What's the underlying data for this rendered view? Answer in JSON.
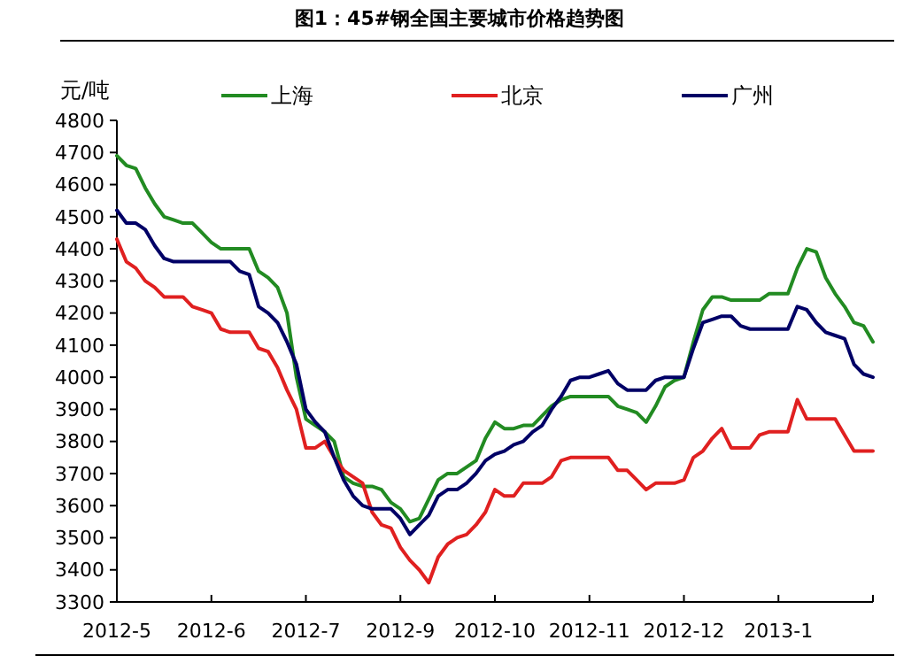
{
  "chart_data": {
    "type": "line",
    "title": "图1：45#钢全国主要城市价格趋势图",
    "ylabel": "元/吨",
    "legend": "top",
    "grid": false,
    "marker": "none",
    "line_style": "solid",
    "categories": [
      "2012-5",
      null,
      null,
      null,
      null,
      null,
      null,
      null,
      null,
      null,
      "2012-6",
      null,
      null,
      null,
      null,
      null,
      null,
      null,
      null,
      null,
      "2012-7",
      null,
      null,
      null,
      null,
      null,
      null,
      null,
      null,
      null,
      "2012-9",
      null,
      null,
      null,
      null,
      null,
      null,
      null,
      null,
      null,
      "2012-10",
      null,
      null,
      null,
      null,
      null,
      null,
      null,
      null,
      null,
      "2012-11",
      null,
      null,
      null,
      null,
      null,
      null,
      null,
      null,
      null,
      "2012-12",
      null,
      null,
      null,
      null,
      null,
      null,
      null,
      null,
      null,
      "2013-1",
      null,
      null,
      null,
      null,
      null,
      null,
      null,
      null,
      null,
      null
    ],
    "ylim": [
      3300,
      4800
    ],
    "yticks": [
      3300,
      3400,
      3500,
      3600,
      3700,
      3800,
      3900,
      4000,
      4100,
      4200,
      4300,
      4400,
      4500,
      4600,
      4700,
      4800
    ],
    "series": [
      {
        "name": "上海",
        "color": "#228b22",
        "values": [
          4690,
          4660,
          4650,
          4590,
          4540,
          4500,
          4490,
          4480,
          4480,
          4450,
          4420,
          4400,
          4400,
          4400,
          4400,
          4330,
          4310,
          4280,
          4200,
          4000,
          3870,
          3850,
          3830,
          3800,
          3690,
          3670,
          3660,
          3660,
          3650,
          3610,
          3590,
          3550,
          3560,
          3620,
          3680,
          3700,
          3700,
          3720,
          3740,
          3810,
          3860,
          3840,
          3840,
          3850,
          3850,
          3880,
          3910,
          3930,
          3940,
          3940,
          3940,
          3940,
          3940,
          3910,
          3900,
          3890,
          3860,
          3910,
          3970,
          3990,
          4000,
          4110,
          4210,
          4250,
          4250,
          4240,
          4240,
          4240,
          4240,
          4260,
          4260,
          4260,
          4340,
          4400,
          4390,
          4310,
          4260,
          4220,
          4170,
          4160,
          4110
        ]
      },
      {
        "name": "北京",
        "color": "#e02020",
        "values": [
          4430,
          4360,
          4340,
          4300,
          4280,
          4250,
          4250,
          4250,
          4220,
          4210,
          4200,
          4150,
          4140,
          4140,
          4140,
          4090,
          4080,
          4030,
          3960,
          3900,
          3780,
          3780,
          3800,
          3750,
          3710,
          3690,
          3670,
          3580,
          3540,
          3530,
          3470,
          3430,
          3400,
          3360,
          3440,
          3480,
          3500,
          3510,
          3540,
          3580,
          3650,
          3630,
          3630,
          3670,
          3670,
          3670,
          3690,
          3740,
          3750,
          3750,
          3750,
          3750,
          3750,
          3710,
          3710,
          3680,
          3650,
          3670,
          3670,
          3670,
          3680,
          3750,
          3770,
          3810,
          3840,
          3780,
          3780,
          3780,
          3820,
          3830,
          3830,
          3830,
          3930,
          3870,
          3870,
          3870,
          3870,
          3820,
          3770,
          3770,
          3770
        ]
      },
      {
        "name": "广州",
        "color": "#000066",
        "values": [
          4520,
          4480,
          4480,
          4460,
          4410,
          4370,
          4360,
          4360,
          4360,
          4360,
          4360,
          4360,
          4360,
          4330,
          4320,
          4220,
          4200,
          4170,
          4110,
          4040,
          3900,
          3860,
          3830,
          3750,
          3680,
          3630,
          3600,
          3590,
          3590,
          3590,
          3560,
          3510,
          3540,
          3570,
          3630,
          3650,
          3650,
          3670,
          3700,
          3740,
          3760,
          3770,
          3790,
          3800,
          3830,
          3850,
          3900,
          3940,
          3990,
          4000,
          4000,
          4010,
          4020,
          3980,
          3960,
          3960,
          3960,
          3990,
          4000,
          4000,
          4000,
          4090,
          4170,
          4180,
          4190,
          4190,
          4160,
          4150,
          4150,
          4150,
          4150,
          4150,
          4220,
          4210,
          4170,
          4140,
          4130,
          4120,
          4040,
          4010,
          4000
        ]
      }
    ]
  }
}
